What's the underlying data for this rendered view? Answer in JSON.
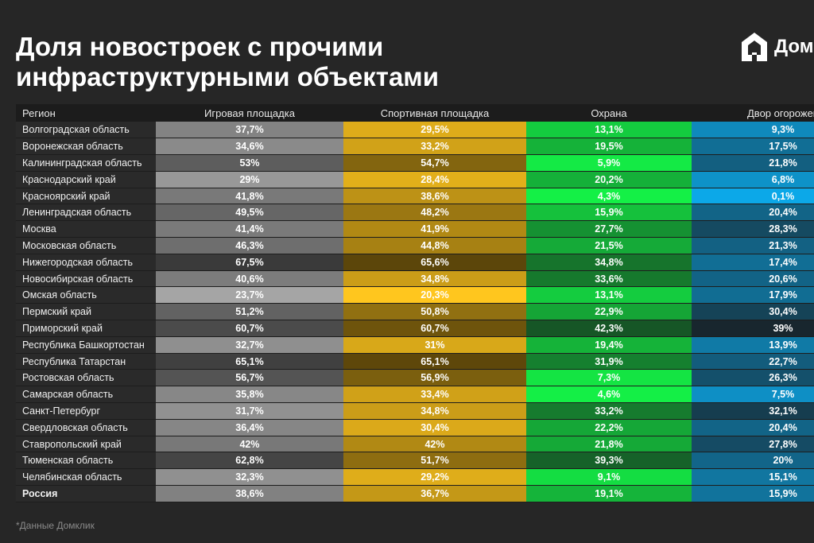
{
  "title_lines": [
    "Доля новостроек с прочими",
    "инфраструктурными объектами"
  ],
  "logo": {
    "text": "Дом",
    "icon": "house-logo-icon"
  },
  "footnote": "*Данные Домклик",
  "colors": {
    "background": "#262626",
    "play": "#7a7a7a",
    "sport": "#d7a81f",
    "guard": "#1a9c3c",
    "yard": "#1c6f8c"
  },
  "chart_data": {
    "type": "table",
    "title": "Доля новостроек с прочими инфраструктурными объектами",
    "columns": [
      "Регион",
      "Игровая площадка",
      "Спортивная площадка",
      "Охрана",
      "Двор огорожен"
    ],
    "rows": [
      {
        "region": "Волгоградская область",
        "play": "37,7%",
        "sport": "29,5%",
        "guard": "13,1%",
        "yard": "9,3%"
      },
      {
        "region": "Воронежская область",
        "play": "34,6%",
        "sport": "33,2%",
        "guard": "19,5%",
        "yard": "17,5%"
      },
      {
        "region": "Калининградская область",
        "play": "53%",
        "sport": "54,7%",
        "guard": "5,9%",
        "yard": "21,8%"
      },
      {
        "region": "Краснодарский край",
        "play": "29%",
        "sport": "28,4%",
        "guard": "20,2%",
        "yard": "6,8%"
      },
      {
        "region": "Красноярский край",
        "play": "41,8%",
        "sport": "38,6%",
        "guard": "4,3%",
        "yard": "0,1%"
      },
      {
        "region": "Ленинградская область",
        "play": "49,5%",
        "sport": "48,2%",
        "guard": "15,9%",
        "yard": "20,4%"
      },
      {
        "region": "Москва",
        "play": "41,4%",
        "sport": "41,9%",
        "guard": "27,7%",
        "yard": "28,3%"
      },
      {
        "region": "Московская область",
        "play": "46,3%",
        "sport": "44,8%",
        "guard": "21,5%",
        "yard": "21,3%"
      },
      {
        "region": "Нижегородская область",
        "play": "67,5%",
        "sport": "65,6%",
        "guard": "34,8%",
        "yard": "17,4%"
      },
      {
        "region": "Новосибирская область",
        "play": "40,6%",
        "sport": "34,8%",
        "guard": "33,6%",
        "yard": "20,6%"
      },
      {
        "region": "Омская область",
        "play": "23,7%",
        "sport": "20,3%",
        "guard": "13,1%",
        "yard": "17,9%"
      },
      {
        "region": "Пермский край",
        "play": "51,2%",
        "sport": "50,8%",
        "guard": "22,9%",
        "yard": "30,4%"
      },
      {
        "region": "Приморский край",
        "play": "60,7%",
        "sport": "60,7%",
        "guard": "42,3%",
        "yard": "39%"
      },
      {
        "region": "Республика Башкортостан",
        "play": "32,7%",
        "sport": "31%",
        "guard": "19,4%",
        "yard": "13,9%"
      },
      {
        "region": "Республика Татарстан",
        "play": "65,1%",
        "sport": "65,1%",
        "guard": "31,9%",
        "yard": "22,7%"
      },
      {
        "region": "Ростовская область",
        "play": "56,7%",
        "sport": "56,9%",
        "guard": "7,3%",
        "yard": "26,3%"
      },
      {
        "region": "Самарская область",
        "play": "35,8%",
        "sport": "33,4%",
        "guard": "4,6%",
        "yard": "7,5%"
      },
      {
        "region": "Санкт-Петербург",
        "play": "31,7%",
        "sport": "34,8%",
        "guard": "33,2%",
        "yard": "32,1%"
      },
      {
        "region": "Свердловская область",
        "play": "36,4%",
        "sport": "30,4%",
        "guard": "22,2%",
        "yard": "20,4%"
      },
      {
        "region": "Ставропольский край",
        "play": "42%",
        "sport": "42%",
        "guard": "21,8%",
        "yard": "27,8%"
      },
      {
        "region": "Тюменская область",
        "play": "62,8%",
        "sport": "51,7%",
        "guard": "39,3%",
        "yard": "20%"
      },
      {
        "region": "Челябинская область",
        "play": "32,3%",
        "sport": "29,2%",
        "guard": "9,1%",
        "yard": "15,1%"
      },
      {
        "region": "Россия",
        "play": "38,6%",
        "sport": "36,7%",
        "guard": "19,1%",
        "yard": "15,9%",
        "total": true
      }
    ]
  }
}
